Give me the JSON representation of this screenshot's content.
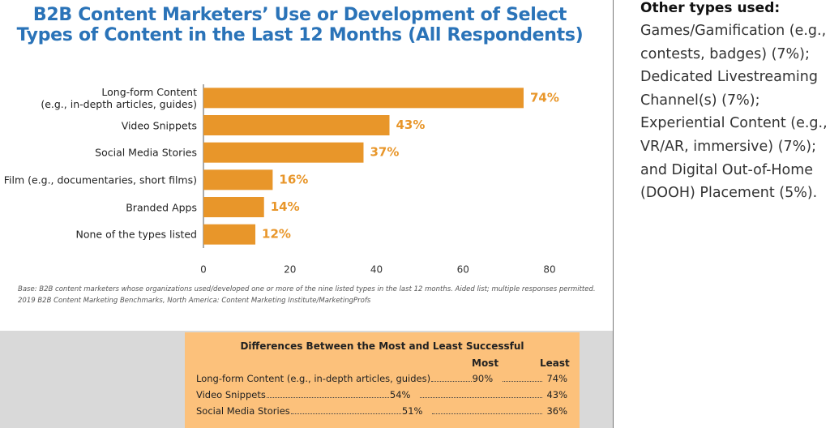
{
  "chart_data": {
    "type": "bar",
    "orientation": "horizontal",
    "title": "B2B Content Marketers’ Use or Development of Select Types of Content in the Last 12 Months (All Respondents)",
    "categories": [
      "Long-form Content\n(e.g., in-depth articles, guides)",
      "Video Snippets",
      "Social Media Stories",
      "Film (e.g., documentaries, short films)",
      "Branded Apps",
      "None of the types listed"
    ],
    "values": [
      74,
      43,
      37,
      16,
      14,
      12
    ],
    "value_labels": [
      "74%",
      "43%",
      "37%",
      "16%",
      "14%",
      "12%"
    ],
    "color": "#e8962a",
    "xlim": [
      0,
      80
    ],
    "xticks": [
      0,
      20,
      40,
      60,
      80
    ],
    "grid": false
  },
  "notes": [
    "Base: B2B content marketers whose organizations used/developed one or more of the nine listed types in the last 12 months. Aided list; multiple responses permitted.",
    "2019 B2B Content Marketing Benchmarks, North America: Content Marketing Institute/MarketingProfs"
  ],
  "sidebar": {
    "heading": "Other types used:",
    "text": "Games/Gamification (e.g., contests, badges) (7%); Dedicated Livestreaming Channel(s) (7%); Experiential Content (e.g., VR/AR, immersive) (7%); and Digital Out-of-Home (DOOH) Placement (5%)."
  },
  "table": {
    "title": "Differences Between the Most and Least Successful",
    "columns": [
      "Most",
      "Least"
    ],
    "rows": [
      [
        "Long-form Content (e.g., in-depth articles, guides)",
        "90%",
        "74%"
      ],
      [
        "Video Snippets",
        "54%",
        "43%"
      ],
      [
        "Social Media Stories",
        "51%",
        "36%"
      ]
    ]
  }
}
